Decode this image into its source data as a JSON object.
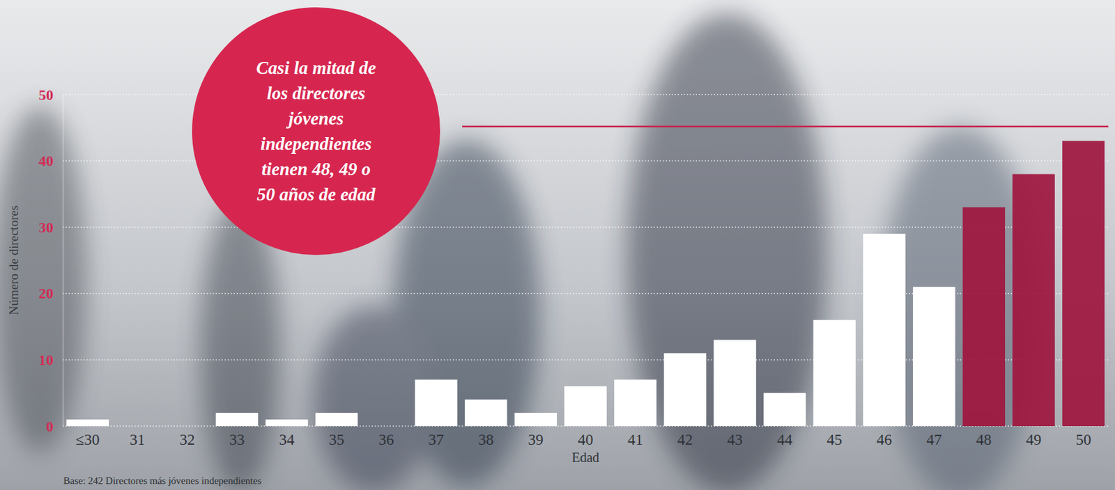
{
  "chart_data": {
    "type": "bar",
    "annotation": [
      "Casi la mitad de",
      "los directores",
      "jóvenes",
      "independientes",
      "tienen 48, 49 o",
      "50 años de edad"
    ],
    "x_label": "Edad",
    "y_label": "Número de directores",
    "note": "Base: 242 Directores más jóvenes independientes",
    "categories": [
      "≤30",
      "31",
      "32",
      "33",
      "34",
      "35",
      "36",
      "37",
      "38",
      "39",
      "40",
      "41",
      "42",
      "43",
      "44",
      "45",
      "46",
      "47",
      "48",
      "49",
      "50"
    ],
    "values": [
      1,
      0,
      0,
      2,
      1,
      2,
      0,
      7,
      4,
      2,
      6,
      7,
      11,
      13,
      5,
      16,
      29,
      21,
      33,
      38,
      43
    ],
    "colors": [
      "#ffffff",
      "#ffffff",
      "#ffffff",
      "#ffffff",
      "#ffffff",
      "#ffffff",
      "#ffffff",
      "#ffffff",
      "#ffffff",
      "#ffffff",
      "#ffffff",
      "#ffffff",
      "#ffffff",
      "#ffffff",
      "#ffffff",
      "#ffffff",
      "#ffffff",
      "#ffffff",
      "#a0163f",
      "#a0163f",
      "#a0163f"
    ],
    "ylim": [
      0,
      50
    ],
    "yticks": [
      0,
      10,
      20,
      30,
      40,
      50
    ],
    "grid": true
  }
}
